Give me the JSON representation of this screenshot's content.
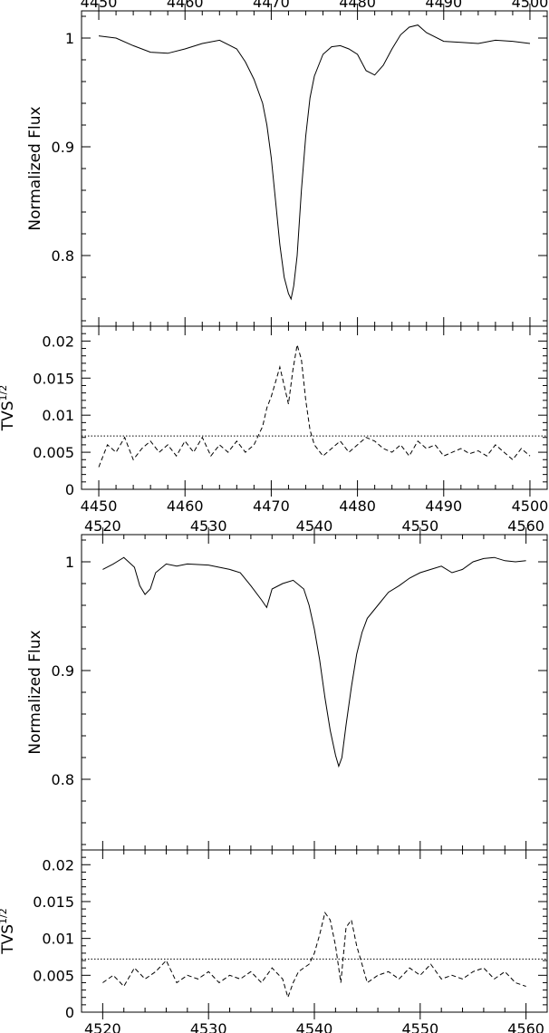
{
  "chart_data": [
    {
      "type": "line",
      "panel": "spectrum",
      "block": 1,
      "title": "",
      "xlabel": "",
      "ylabel": "Normalized Flux",
      "xlim": [
        4448,
        4502
      ],
      "ylim": [
        0.735,
        1.025
      ],
      "x_ticks": [
        4450,
        4460,
        4470,
        4480,
        4490,
        4500
      ],
      "y_ticks": [
        0.8,
        0.9,
        1
      ],
      "y_tick_labels": [
        "0.8",
        "0.9",
        "1"
      ],
      "series": [
        {
          "x": [
            4450,
            4452,
            4454,
            4456,
            4458,
            4460,
            4462,
            4464,
            4466,
            4467,
            4468,
            4469,
            4469.5,
            4470,
            4470.5,
            4471,
            4471.5,
            4472,
            4472.3,
            4472.6,
            4473,
            4473.5,
            4474,
            4474.5,
            4475,
            4476,
            4477,
            4478,
            4479,
            4480,
            4481,
            4482,
            4483,
            4484,
            4485,
            4486,
            4487,
            4488,
            4490,
            4492,
            4494,
            4496,
            4498,
            4500
          ],
          "y": [
            1.002,
            1.0,
            0.993,
            0.987,
            0.986,
            0.99,
            0.995,
            0.998,
            0.99,
            0.978,
            0.962,
            0.94,
            0.92,
            0.89,
            0.85,
            0.81,
            0.78,
            0.765,
            0.76,
            0.772,
            0.8,
            0.86,
            0.91,
            0.945,
            0.965,
            0.985,
            0.992,
            0.993,
            0.99,
            0.985,
            0.97,
            0.966,
            0.975,
            0.99,
            1.003,
            1.01,
            1.012,
            1.005,
            0.997,
            0.996,
            0.995,
            0.998,
            0.997,
            0.995
          ]
        }
      ]
    },
    {
      "type": "line",
      "panel": "tvs",
      "block": 1,
      "title": "",
      "xlabel": "",
      "ylabel": "TVS",
      "ylabel_superscript": "1/2",
      "xlim": [
        4448,
        4502
      ],
      "ylim": [
        0,
        0.022
      ],
      "x_ticks": [
        4450,
        4460,
        4470,
        4480,
        4490,
        4500
      ],
      "y_ticks": [
        0,
        0.005,
        0.01,
        0.015,
        0.02
      ],
      "y_tick_labels": [
        "0",
        "0.005",
        "0.01",
        "0.015",
        "0.02"
      ],
      "threshold": 0.0072,
      "series": [
        {
          "x": [
            4450,
            4451,
            4452,
            4453,
            4454,
            4455,
            4456,
            4457,
            4458,
            4459,
            4460,
            4461,
            4462,
            4463,
            4464,
            4465,
            4466,
            4467,
            4468,
            4469,
            4469.5,
            4470,
            4470.5,
            4471,
            4471.5,
            4472,
            4472.5,
            4473,
            4473.5,
            4474,
            4474.5,
            4475,
            4476,
            4477,
            4478,
            4479,
            4480,
            4481,
            4482,
            4483,
            4484,
            4485,
            4486,
            4487,
            4488,
            4489,
            4490,
            4491,
            4492,
            4493,
            4494,
            4495,
            4496,
            4497,
            4498,
            4499,
            4500
          ],
          "y": [
            0.003,
            0.006,
            0.005,
            0.007,
            0.004,
            0.0055,
            0.0065,
            0.005,
            0.006,
            0.0045,
            0.0065,
            0.005,
            0.007,
            0.0045,
            0.006,
            0.005,
            0.0065,
            0.005,
            0.006,
            0.0085,
            0.011,
            0.0125,
            0.0145,
            0.0165,
            0.014,
            0.0115,
            0.016,
            0.0195,
            0.0175,
            0.012,
            0.008,
            0.006,
            0.0045,
            0.0055,
            0.0065,
            0.005,
            0.006,
            0.007,
            0.0065,
            0.0055,
            0.005,
            0.006,
            0.0045,
            0.0065,
            0.0055,
            0.006,
            0.0045,
            0.005,
            0.0055,
            0.0048,
            0.0052,
            0.0045,
            0.006,
            0.005,
            0.004,
            0.0055,
            0.0045
          ]
        }
      ]
    },
    {
      "type": "line",
      "panel": "spectrum",
      "block": 2,
      "title": "",
      "xlabel": "",
      "ylabel": "Normalized Flux",
      "xlim": [
        4518,
        4562
      ],
      "ylim": [
        0.735,
        1.025
      ],
      "x_ticks": [
        4520,
        4530,
        4540,
        4550,
        4560
      ],
      "y_ticks": [
        0.8,
        0.9,
        1
      ],
      "y_tick_labels": [
        "0.8",
        "0.9",
        "1"
      ],
      "series": [
        {
          "x": [
            4520,
            4521,
            4522,
            4523,
            4523.5,
            4524,
            4524.5,
            4525,
            4526,
            4527,
            4528,
            4530,
            4532,
            4533,
            4534,
            4535,
            4535.5,
            4536,
            4537,
            4538,
            4539,
            4539.5,
            4540,
            4540.5,
            4541,
            4541.5,
            4542,
            4542.3,
            4542.6,
            4543,
            4543.5,
            4544,
            4544.5,
            4545,
            4546,
            4547,
            4548,
            4549,
            4550,
            4551,
            4552,
            4553,
            4554,
            4555,
            4556,
            4557,
            4558,
            4559,
            4560
          ],
          "y": [
            0.993,
            0.998,
            1.004,
            0.995,
            0.978,
            0.97,
            0.975,
            0.99,
            0.998,
            0.996,
            0.998,
            0.997,
            0.993,
            0.99,
            0.978,
            0.965,
            0.958,
            0.975,
            0.98,
            0.983,
            0.975,
            0.96,
            0.938,
            0.91,
            0.875,
            0.845,
            0.822,
            0.812,
            0.82,
            0.85,
            0.885,
            0.915,
            0.935,
            0.948,
            0.96,
            0.972,
            0.978,
            0.985,
            0.99,
            0.993,
            0.996,
            0.99,
            0.993,
            1.0,
            1.003,
            1.004,
            1.001,
            1.0,
            1.001
          ]
        }
      ]
    },
    {
      "type": "line",
      "panel": "tvs",
      "block": 2,
      "title": "",
      "xlabel": "",
      "ylabel": "TVS",
      "ylabel_superscript": "1/2",
      "xlim": [
        4518,
        4562
      ],
      "ylim": [
        0,
        0.022
      ],
      "x_ticks": [
        4520,
        4530,
        4540,
        4550,
        4560
      ],
      "y_ticks": [
        0,
        0.005,
        0.01,
        0.015,
        0.02
      ],
      "y_tick_labels": [
        "0",
        "0.005",
        "0.01",
        "0.015",
        "0.02"
      ],
      "threshold": 0.0072,
      "series": [
        {
          "x": [
            4520,
            4521,
            4522,
            4523,
            4524,
            4525,
            4526,
            4527,
            4528,
            4529,
            4530,
            4531,
            4532,
            4533,
            4534,
            4535,
            4536,
            4537,
            4537.5,
            4538,
            4538.5,
            4539,
            4539.5,
            4540,
            4540.5,
            4541,
            4541.5,
            4542,
            4542.5,
            4543,
            4543.5,
            4544,
            4544.5,
            4545,
            4546,
            4547,
            4548,
            4549,
            4550,
            4551,
            4552,
            4553,
            4554,
            4555,
            4556,
            4557,
            4558,
            4559,
            4560
          ],
          "y": [
            0.004,
            0.005,
            0.0035,
            0.006,
            0.0045,
            0.0055,
            0.007,
            0.004,
            0.005,
            0.0045,
            0.0055,
            0.004,
            0.005,
            0.0045,
            0.0055,
            0.004,
            0.006,
            0.0045,
            0.002,
            0.004,
            0.0055,
            0.006,
            0.0065,
            0.008,
            0.0105,
            0.0135,
            0.0125,
            0.009,
            0.004,
            0.0115,
            0.0125,
            0.009,
            0.0065,
            0.004,
            0.005,
            0.0055,
            0.0045,
            0.006,
            0.005,
            0.0065,
            0.0045,
            0.005,
            0.0045,
            0.0055,
            0.006,
            0.0045,
            0.0055,
            0.004,
            0.0035
          ]
        }
      ]
    }
  ]
}
